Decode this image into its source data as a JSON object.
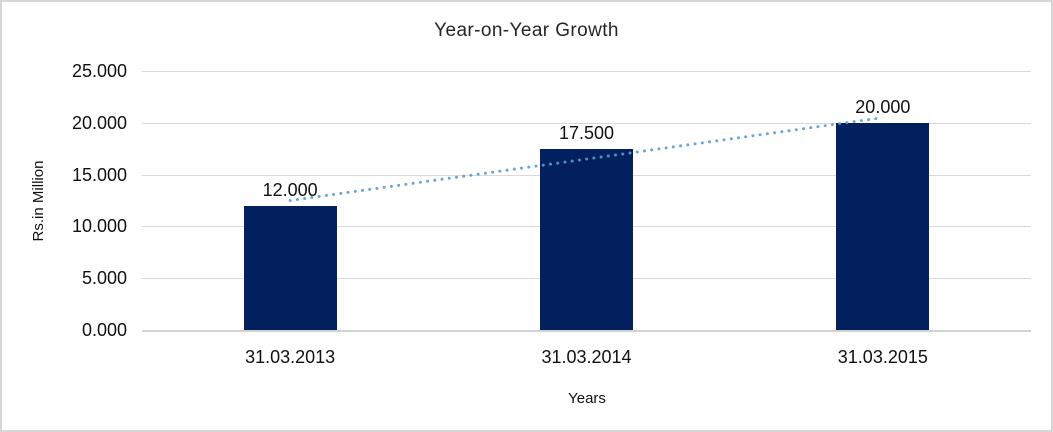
{
  "chart_data": {
    "type": "bar",
    "title": "Year-on-Year Growth",
    "xlabel": "Years",
    "ylabel": "Rs.in Million",
    "categories": [
      "31.03.2013",
      "31.03.2014",
      "31.03.2015"
    ],
    "values": [
      12.0,
      17.5,
      20.0
    ],
    "data_labels": [
      "12.000",
      "17.500",
      "20.000"
    ],
    "yticks": [
      0,
      5,
      10,
      15,
      20,
      25
    ],
    "ytick_labels": [
      "0.000",
      "5.000",
      "10.000",
      "15.000",
      "20.000",
      "25.000"
    ],
    "ylim": [
      0,
      25
    ],
    "grid": true,
    "legend_position": "none",
    "bar_color": "#02205E",
    "trendline": {
      "type": "linear",
      "style": "dotted",
      "color": "#5B9BD5",
      "start_value": 12.5,
      "end_value": 20.5
    }
  }
}
